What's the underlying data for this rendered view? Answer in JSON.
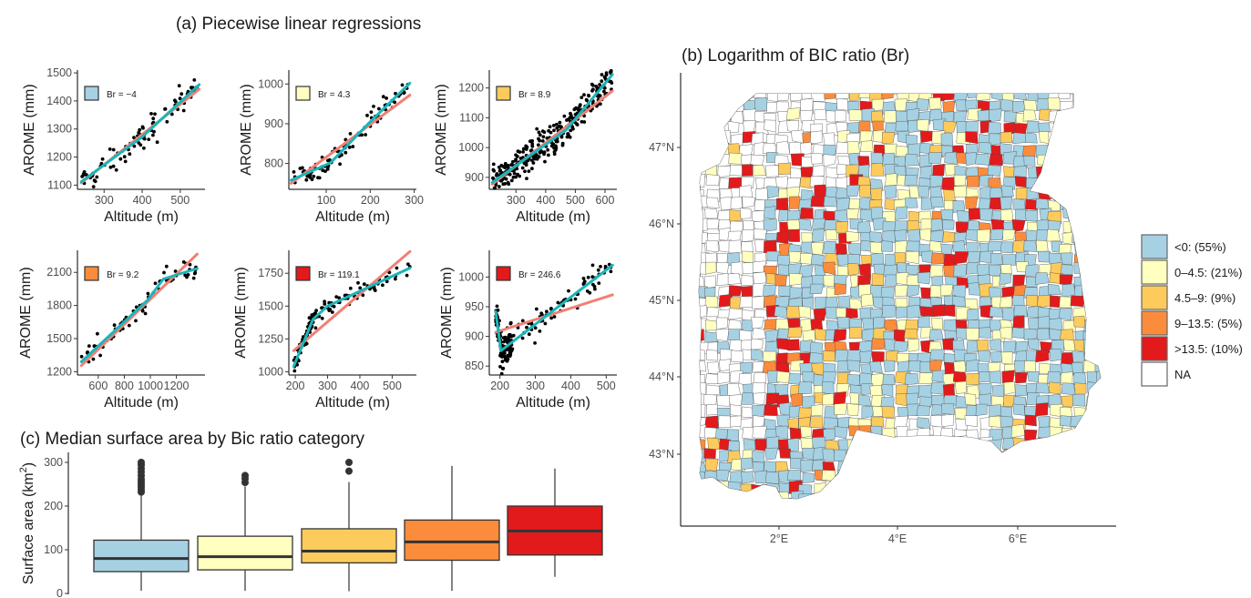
{
  "figure": {
    "title_a": "(a) Piecewise linear regressions",
    "title_b": "(b) Logarithm of BIC ratio (Br)",
    "title_c": "(c) Median surface area by Bic ratio category"
  },
  "colors": {
    "cat": [
      "#a6d1e3",
      "#ffffbf",
      "#fdcb5c",
      "#fb8c3c",
      "#e31a1c",
      "#ffffff"
    ],
    "linear_fit": "#f08075",
    "piecewise_fit": "#1bb5b8",
    "points": "#000000"
  },
  "chart_data": [
    {
      "id": "a1",
      "type": "scatter",
      "xlabel": "Altitude (m)",
      "ylabel": "AROME (mm)",
      "xlim": [
        230,
        565
      ],
      "ylim": [
        1085,
        1510
      ],
      "xticks": [
        300,
        400,
        500
      ],
      "yticks": [
        1100,
        1200,
        1300,
        1400,
        1500
      ],
      "br_label": "Br = −4",
      "br_category": 0,
      "linear_fit": [
        [
          240,
          1108
        ],
        [
          550,
          1442
        ]
      ],
      "piecewise_fit": [
        [
          240,
          1112
        ],
        [
          400,
          1272
        ],
        [
          550,
          1458
        ]
      ],
      "n_points": 90
    },
    {
      "id": "a2",
      "type": "scatter",
      "xlabel": "Altitude (m)",
      "ylabel": "AROME (mm)",
      "xlim": [
        15,
        305
      ],
      "ylim": [
        735,
        1035
      ],
      "xticks": [
        100,
        200,
        300
      ],
      "yticks": [
        800,
        900,
        1000
      ],
      "br_label": "Br = 4.3",
      "br_category": 1,
      "linear_fit": [
        [
          20,
          750
        ],
        [
          290,
          972
        ]
      ],
      "piecewise_fit": [
        [
          20,
          758
        ],
        [
          110,
          802
        ],
        [
          200,
          905
        ],
        [
          290,
          1002
        ]
      ],
      "n_points": 90
    },
    {
      "id": "a3",
      "type": "scatter",
      "xlabel": "Altitude (m)",
      "ylabel": "AROME (mm)",
      "xlim": [
        210,
        640
      ],
      "ylim": [
        860,
        1260
      ],
      "xticks": [
        300,
        400,
        500,
        600
      ],
      "yticks": [
        900,
        1000,
        1100,
        1200
      ],
      "br_label": "Br = 8.9",
      "br_category": 2,
      "linear_fit": [
        [
          220,
          877
        ],
        [
          625,
          1190
        ]
      ],
      "piecewise_fit": [
        [
          220,
          883
        ],
        [
          470,
          1060
        ],
        [
          625,
          1245
        ]
      ],
      "n_points": 300
    },
    {
      "id": "a4",
      "type": "scatter",
      "xlabel": "Altitude (m)",
      "ylabel": "AROME (mm)",
      "xlim": [
        440,
        1420
      ],
      "ylim": [
        1170,
        2300
      ],
      "xticks": [
        600,
        800,
        1000,
        1200
      ],
      "yticks": [
        1200,
        1500,
        1800,
        2100
      ],
      "br_label": "Br = 9.2",
      "br_category": 3,
      "linear_fit": [
        [
          470,
          1255
        ],
        [
          1360,
          2265
        ]
      ],
      "piecewise_fit": [
        [
          470,
          1290
        ],
        [
          980,
          1850
        ],
        [
          1100,
          2040
        ],
        [
          1360,
          2135
        ]
      ],
      "n_points": 70
    },
    {
      "id": "a5",
      "type": "scatter",
      "xlabel": "Altitude (m)",
      "ylabel": "AROME (mm)",
      "xlim": [
        180,
        575
      ],
      "ylim": [
        975,
        1925
      ],
      "xticks": [
        200,
        300,
        400,
        500
      ],
      "yticks": [
        1000,
        1250,
        1500,
        1750
      ],
      "br_label": "Br = 119.1",
      "br_category": 4,
      "linear_fit": [
        [
          195,
          1160
        ],
        [
          555,
          1915
        ]
      ],
      "piecewise_fit": [
        [
          195,
          1040
        ],
        [
          255,
          1400
        ],
        [
          300,
          1500
        ],
        [
          555,
          1790
        ]
      ],
      "n_points": 130
    },
    {
      "id": "a6",
      "type": "scatter",
      "xlabel": "Altitude (m)",
      "ylabel": "AROME (mm)",
      "xlim": [
        170,
        530
      ],
      "ylim": [
        835,
        1045
      ],
      "xticks": [
        200,
        300,
        400,
        500
      ],
      "yticks": [
        850,
        900,
        950,
        1000
      ],
      "br_label": "Br = 246.6",
      "br_category": 4,
      "linear_fit": [
        [
          188,
          907
        ],
        [
          518,
          970
        ]
      ],
      "piecewise_fit": [
        [
          188,
          942
        ],
        [
          203,
          876
        ],
        [
          518,
          1020
        ]
      ],
      "n_points": 180
    },
    {
      "id": "b",
      "type": "heatmap",
      "title": "(b) Logarithm of BIC ratio (Br)",
      "lon_ticks": [
        "2°E",
        "4°E",
        "6°E"
      ],
      "lat_ticks": [
        "43°N",
        "44°N",
        "45°N",
        "46°N",
        "47°N"
      ],
      "legend": [
        {
          "label": "<0: (55%)",
          "share": 55
        },
        {
          "label": "0–4.5: (21%)",
          "share": 21
        },
        {
          "label": "4.5–9: (9%)",
          "share": 9
        },
        {
          "label": "9–13.5: (5%)",
          "share": 5
        },
        {
          "label": ">13.5: (10%)",
          "share": 10
        },
        {
          "label": "NA",
          "share": null
        }
      ],
      "legend_position": "right"
    },
    {
      "id": "c",
      "type": "box",
      "title": "(c) Median surface area by Bic ratio category",
      "ylabel_main": "Surface area (km",
      "ylabel_sup": "2",
      "ylabel_close": ")",
      "ylim": [
        0,
        310
      ],
      "yticks": [
        0,
        100,
        200,
        300
      ],
      "boxes": [
        {
          "q1": 50,
          "median": 80,
          "q3": 122,
          "whisker_low": 6,
          "whisker_high": 225,
          "outliers": [
            232,
            238,
            244,
            250,
            256,
            262,
            270,
            278,
            286,
            294,
            300
          ]
        },
        {
          "q1": 54,
          "median": 84,
          "q3": 131,
          "whisker_low": 6,
          "whisker_high": 245,
          "outliers": [
            254,
            263,
            270
          ]
        },
        {
          "q1": 70,
          "median": 97,
          "q3": 148,
          "whisker_low": 5,
          "whisker_high": 255,
          "outliers": [
            280,
            300
          ]
        },
        {
          "q1": 76,
          "median": 118,
          "q3": 168,
          "whisker_low": 6,
          "whisker_high": 292,
          "outliers": []
        },
        {
          "q1": 88,
          "median": 143,
          "q3": 200,
          "whisker_low": 38,
          "whisker_high": 286,
          "outliers": []
        }
      ]
    }
  ]
}
